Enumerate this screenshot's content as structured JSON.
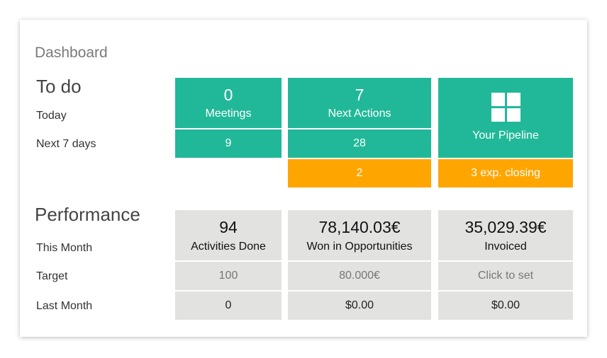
{
  "dashboard": {
    "title": "Dashboard",
    "todo": {
      "heading": "To do",
      "rows": {
        "today": "Today",
        "next7": "Next 7 days"
      },
      "meetings": {
        "today": "0",
        "label": "Meetings",
        "next7": "9"
      },
      "next_actions": {
        "today": "7",
        "label": "Next Actions",
        "next7": "28",
        "overdue": "2"
      },
      "pipeline": {
        "label": "Your Pipeline",
        "closing": "3 exp. closing"
      }
    },
    "performance": {
      "heading": "Performance",
      "rows": {
        "this_month": "This Month",
        "target": "Target",
        "last_month": "Last Month"
      },
      "activities": {
        "value": "94",
        "label": "Activities Done",
        "target": "100",
        "last_month": "0"
      },
      "won": {
        "value": "78,140.03€",
        "label": "Won in Opportunities",
        "target": "80.000€",
        "last_month": "$0.00"
      },
      "invoiced": {
        "value": "35,029.39€",
        "label": "Invoiced",
        "target": "Click to set",
        "last_month": "$0.00"
      }
    }
  },
  "colors": {
    "green": "#21b899",
    "orange": "#ffa500",
    "grey": "#e2e2e1"
  },
  "icons": {
    "pipeline": "grid-icon"
  }
}
